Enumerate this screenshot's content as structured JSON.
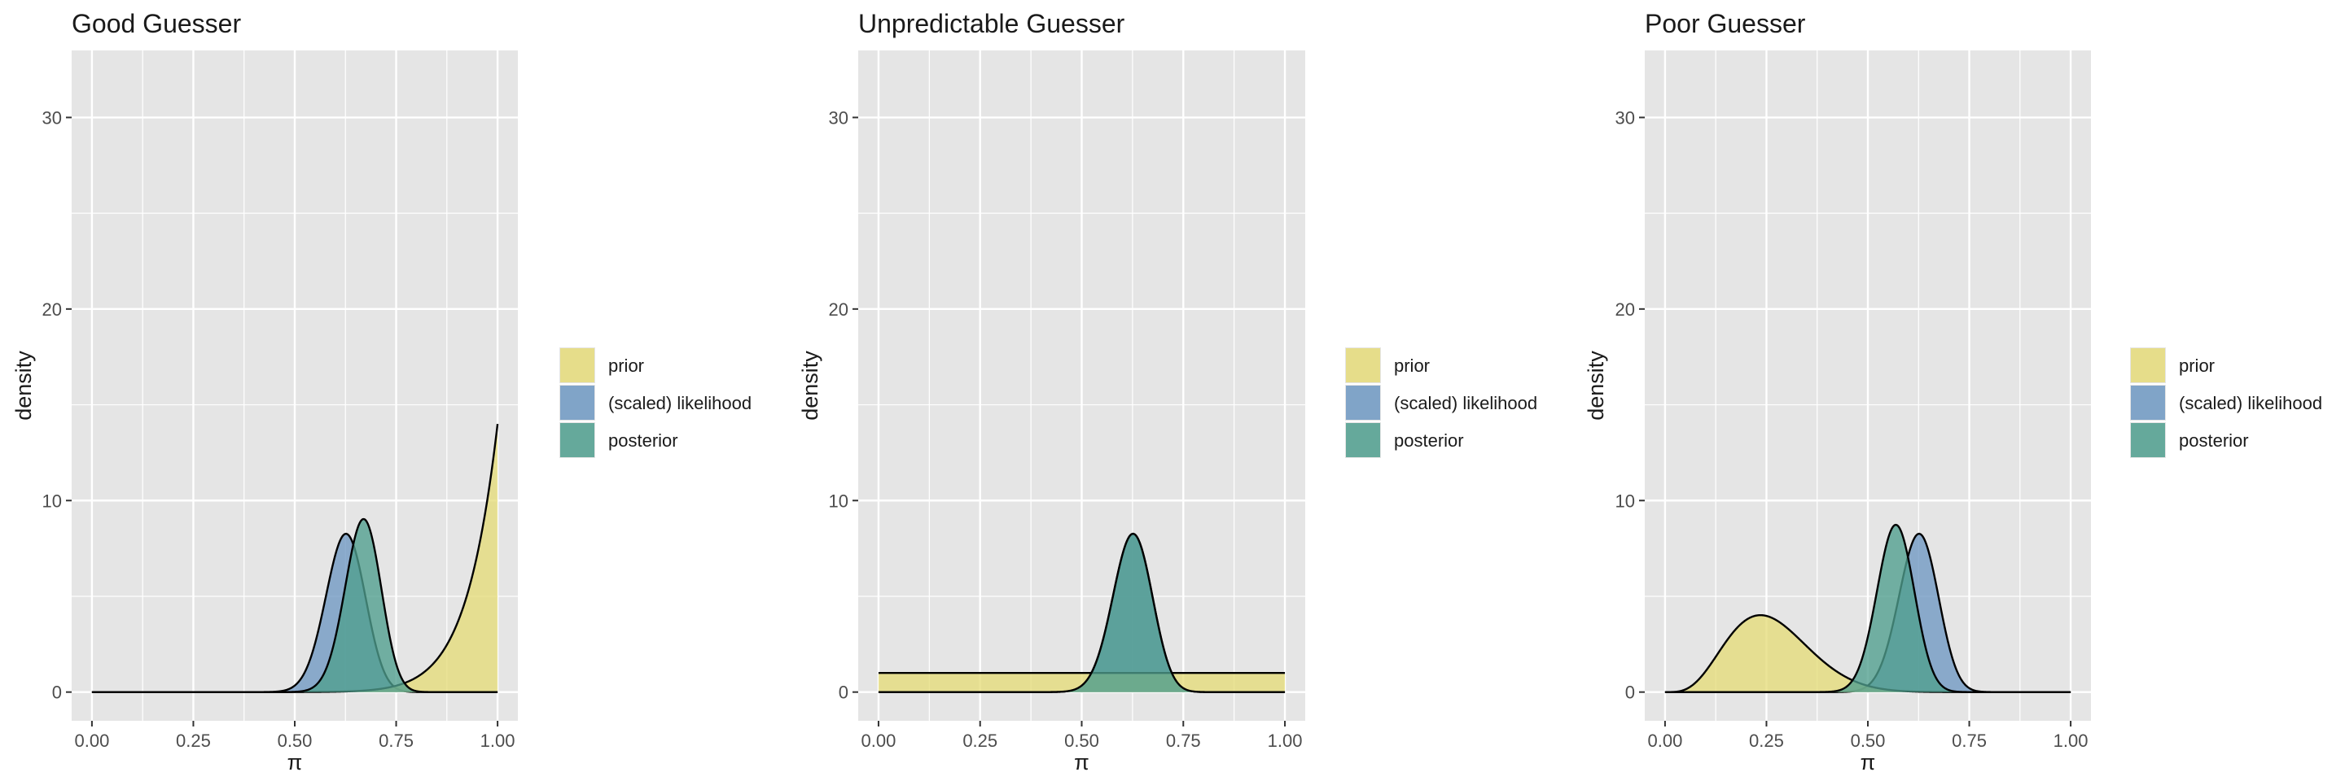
{
  "chart_data": [
    {
      "type": "area",
      "title": "Good Guesser",
      "xlabel": "π",
      "ylabel": "density",
      "xlim": [
        0,
        1
      ],
      "ylim": [
        -1.5,
        33.5
      ],
      "x_ticks": [
        0.0,
        0.25,
        0.5,
        0.75,
        1.0
      ],
      "x_tick_labels": [
        "0.00",
        "0.25",
        "0.50",
        "0.75",
        "1.00"
      ],
      "y_ticks": [
        0,
        10,
        20,
        30
      ],
      "y_tick_labels": [
        "0",
        "10",
        "20",
        "30"
      ],
      "grid": true,
      "legend_position": "right",
      "series": [
        {
          "name": "prior",
          "color": "#e6dc7a",
          "dist": "beta",
          "alpha": 14,
          "beta": 1
        },
        {
          "name": "(scaled) likelihood",
          "color": "#6f99c3",
          "dist": "beta",
          "alpha": 63,
          "beta": 38
        },
        {
          "name": "posterior",
          "color": "#4f9f8e",
          "dist": "beta",
          "alpha": 76,
          "beta": 38
        }
      ]
    },
    {
      "type": "area",
      "title": "Unpredictable Guesser",
      "xlabel": "π",
      "ylabel": "density",
      "xlim": [
        0,
        1
      ],
      "ylim": [
        -1.5,
        33.5
      ],
      "x_ticks": [
        0.0,
        0.25,
        0.5,
        0.75,
        1.0
      ],
      "x_tick_labels": [
        "0.00",
        "0.25",
        "0.50",
        "0.75",
        "1.00"
      ],
      "y_ticks": [
        0,
        10,
        20,
        30
      ],
      "y_tick_labels": [
        "0",
        "10",
        "20",
        "30"
      ],
      "grid": true,
      "legend_position": "right",
      "series": [
        {
          "name": "prior",
          "color": "#e6dc7a",
          "dist": "beta",
          "alpha": 1,
          "beta": 1
        },
        {
          "name": "(scaled) likelihood",
          "color": "#6f99c3",
          "dist": "beta",
          "alpha": 63,
          "beta": 38
        },
        {
          "name": "posterior",
          "color": "#4f9f8e",
          "dist": "beta",
          "alpha": 63,
          "beta": 38
        }
      ]
    },
    {
      "type": "area",
      "title": "Poor Guesser",
      "xlabel": "π",
      "ylabel": "density",
      "xlim": [
        0,
        1
      ],
      "ylim": [
        -1.5,
        33.5
      ],
      "x_ticks": [
        0.0,
        0.25,
        0.5,
        0.75,
        1.0
      ],
      "x_tick_labels": [
        "0.00",
        "0.25",
        "0.50",
        "0.75",
        "1.00"
      ],
      "y_ticks": [
        0,
        10,
        20,
        30
      ],
      "y_tick_labels": [
        "0",
        "10",
        "20",
        "30"
      ],
      "grid": true,
      "legend_position": "right",
      "series": [
        {
          "name": "prior",
          "color": "#e6dc7a",
          "dist": "beta",
          "alpha": 5,
          "beta": 14
        },
        {
          "name": "(scaled) likelihood",
          "color": "#6f99c3",
          "dist": "beta",
          "alpha": 63,
          "beta": 38
        },
        {
          "name": "posterior",
          "color": "#4f9f8e",
          "dist": "beta",
          "alpha": 67,
          "beta": 51
        }
      ]
    }
  ],
  "legend": {
    "items": [
      {
        "label": "prior",
        "color": "#e6dc7a"
      },
      {
        "label": "(scaled) likelihood",
        "color": "#6f99c3"
      },
      {
        "label": "posterior",
        "color": "#4f9f8e"
      }
    ]
  },
  "style": {
    "panel_background": "#e5e5e5",
    "grid_color": "#ffffff",
    "outline_color": "#000000",
    "text_color": "#1a1a1a",
    "tick_label_color": "#4d4d4d"
  }
}
